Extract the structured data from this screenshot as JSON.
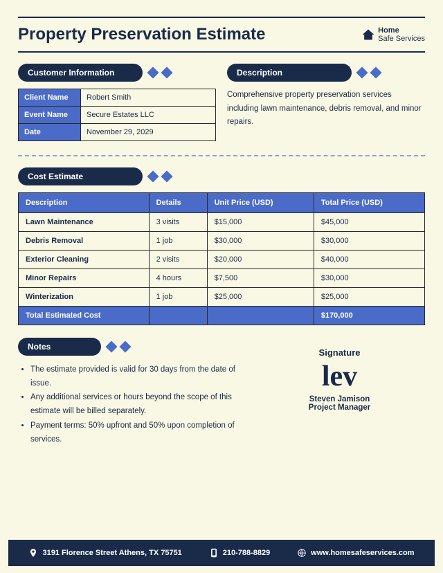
{
  "colors": {
    "background": "#f9f8e4",
    "dark_navy": "#1a2b4a",
    "accent_blue": "#4a6bc7",
    "text": "#1a2b4a"
  },
  "header": {
    "title": "Property Preservation Estimate",
    "logo_line1": "Home",
    "logo_line2": "Safe Services"
  },
  "customer_section": {
    "heading": "Customer Information",
    "rows": [
      {
        "label": "Client Name",
        "value": "Robert Smith"
      },
      {
        "label": "Event Name",
        "value": "Secure Estates LLC"
      },
      {
        "label": "Date",
        "value": "November 29, 2029"
      }
    ]
  },
  "description_section": {
    "heading": "Description",
    "text": "Comprehensive property preservation services including lawn maintenance, debris removal, and minor repairs."
  },
  "cost_section": {
    "heading": "Cost Estimate",
    "columns": [
      "Description",
      "Details",
      "Unit Price (USD)",
      "Total Price (USD)"
    ],
    "rows": [
      {
        "desc": "Lawn Maintenance",
        "details": "3 visits",
        "unit": "$15,000",
        "total": "$45,000"
      },
      {
        "desc": "Debris Removal",
        "details": "1 job",
        "unit": "$30,000",
        "total": "$30,000"
      },
      {
        "desc": "Exterior Cleaning",
        "details": "2 visits",
        "unit": "$20,000",
        "total": "$40,000"
      },
      {
        "desc": "Minor Repairs",
        "details": "4 hours",
        "unit": "$7,500",
        "total": "$30,000"
      },
      {
        "desc": "Winterization",
        "details": "1 job",
        "unit": "$25,000",
        "total": "$25,000"
      }
    ],
    "footer_label": "Total Estimated Cost",
    "footer_total": "$170,000"
  },
  "notes_section": {
    "heading": "Notes",
    "items": [
      "The estimate provided is valid for 30 days from the date of issue.",
      "Any additional services or hours beyond the scope of this estimate will be billed separately.",
      "Payment terms: 50% upfront and 50% upon completion of services."
    ]
  },
  "signature": {
    "heading": "Signature",
    "name": "Steven Jamison",
    "role": "Project Manager"
  },
  "footer": {
    "address": "3191 Florence Street Athens, TX 75751",
    "phone": "210-788-8829",
    "website": "www.homesafeservices.com"
  }
}
